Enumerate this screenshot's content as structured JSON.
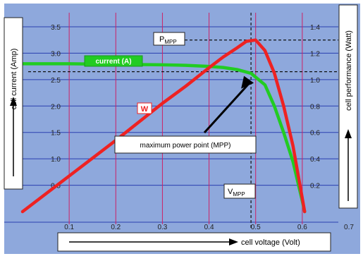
{
  "chart_data": {
    "type": "line",
    "xlabel": "cell voltage (Volt)",
    "ylabel_left": "cell current (Amp)",
    "ylabel_right": "cell performance (Watt)",
    "x_ticks": [
      "0.1",
      "0.2",
      "0.3",
      "0.4",
      "0.5",
      "0.6",
      "0.7"
    ],
    "y_left_ticks": [
      "0.5",
      "1.0",
      "1.5",
      "2.0",
      "2.5",
      "3.0",
      "3.5"
    ],
    "y_right_ticks": [
      "0.2",
      "0.4",
      "0.6",
      "0.8",
      "1.0",
      "1.2",
      "1.4"
    ],
    "xlim": [
      0,
      0.7
    ],
    "ylim_left": [
      0,
      3.5
    ],
    "ylim_right": [
      0,
      1.4
    ],
    "series": [
      {
        "name": "current (A)",
        "axis": "left",
        "color": "#22cc22",
        "x": [
          0,
          0.1,
          0.2,
          0.3,
          0.35,
          0.4,
          0.43,
          0.46,
          0.49,
          0.52,
          0.54,
          0.56,
          0.58,
          0.6,
          0.605
        ],
        "y": [
          2.8,
          2.8,
          2.79,
          2.78,
          2.77,
          2.75,
          2.73,
          2.69,
          2.62,
          2.4,
          2.0,
          1.5,
          0.95,
          0.2,
          0
        ]
      },
      {
        "name": "W",
        "axis": "right",
        "color": "#ee2222",
        "x": [
          0,
          0.1,
          0.2,
          0.3,
          0.35,
          0.4,
          0.43,
          0.46,
          0.48,
          0.5,
          0.52,
          0.54,
          0.56,
          0.58,
          0.6,
          0.605
        ],
        "y": [
          0.0,
          0.27,
          0.54,
          0.82,
          0.95,
          1.09,
          1.17,
          1.24,
          1.29,
          1.3,
          1.22,
          1.05,
          0.8,
          0.5,
          0.1,
          0
        ]
      }
    ],
    "mpp": {
      "x": 0.49,
      "y_left": 2.65,
      "y_right": 1.3
    },
    "annotations": {
      "pmpp": "P",
      "pmpp_sub": "MPP",
      "vmpp": "V",
      "vmpp_sub": "MPP",
      "mpp_label": "maximum power point (MPP)"
    },
    "colors": {
      "background": "#8ea8dc",
      "grid_horizontal": "#2a3fb0",
      "grid_vertical": "#cc2266",
      "frame": "#111111"
    }
  }
}
